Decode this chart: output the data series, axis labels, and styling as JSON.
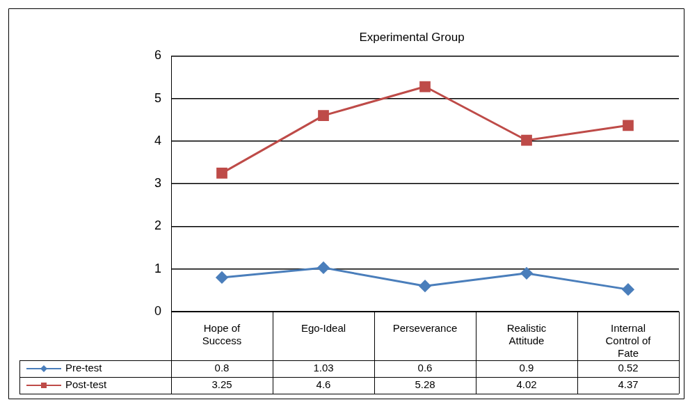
{
  "chart_data": {
    "type": "line",
    "title": "Experimental Group",
    "categories": [
      "Hope of Success",
      "Ego-Ideal",
      "Perseverance",
      "Realistic Attitude",
      "Internal Control of Fate"
    ],
    "series": [
      {
        "name": "Pre-test",
        "color": "#4a7ebb",
        "marker": "diamond",
        "values": [
          0.8,
          1.03,
          0.6,
          0.9,
          0.52
        ]
      },
      {
        "name": "Post-test",
        "color": "#be4b48",
        "marker": "square",
        "values": [
          3.25,
          4.6,
          5.28,
          4.02,
          4.37
        ]
      }
    ],
    "ylim": [
      0,
      6
    ],
    "yticks": [
      0,
      1,
      2,
      3,
      4,
      5,
      6
    ],
    "grid": "y",
    "legend": "bottom",
    "data_labels": true
  }
}
